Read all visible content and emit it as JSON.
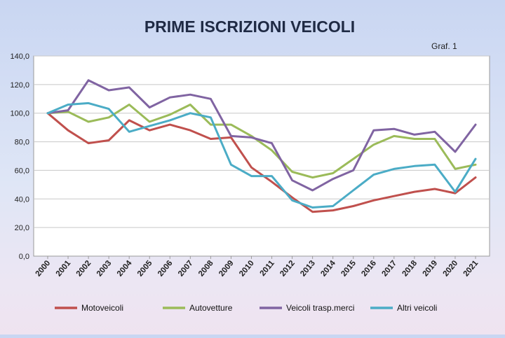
{
  "chart_data": {
    "type": "line",
    "title": "PRIME ISCRIZIONI VEICOLI",
    "annotation": "Graf. 1",
    "x": [
      "2000",
      "2001",
      "2002",
      "2003",
      "2004",
      "2005",
      "2006",
      "2007",
      "2008",
      "2009",
      "2010",
      "2011",
      "2012",
      "2013",
      "2014",
      "2015",
      "2016",
      "2017",
      "2018",
      "2019",
      "2020",
      "2021"
    ],
    "y_ticks": [
      "0,0",
      "20,0",
      "40,0",
      "60,0",
      "80,0",
      "100,0",
      "120,0",
      "140,0"
    ],
    "ylim": [
      0,
      140
    ],
    "grid": true,
    "legend_position": "bottom",
    "series": [
      {
        "name": "Motoveicoli",
        "color": "#c0504d",
        "values": [
          100,
          88,
          79,
          81,
          95,
          88,
          92,
          88,
          82,
          83,
          62,
          52,
          41,
          31,
          32,
          35,
          39,
          42,
          45,
          47,
          44,
          55
        ]
      },
      {
        "name": "Autovetture",
        "color": "#9bbb59",
        "values": [
          100,
          101,
          94,
          97,
          106,
          94,
          99,
          106,
          92,
          92,
          84,
          74,
          59,
          55,
          58,
          68,
          78,
          84,
          82,
          82,
          61,
          64
        ]
      },
      {
        "name": "Veicoli trasp.merci",
        "color": "#8064a2",
        "values": [
          100,
          102,
          123,
          116,
          118,
          104,
          111,
          113,
          110,
          84,
          83,
          79,
          53,
          46,
          54,
          60,
          88,
          89,
          85,
          87,
          73,
          92
        ]
      },
      {
        "name": "Altri veicoli",
        "color": "#4bacc6",
        "values": [
          100,
          106,
          107,
          103,
          87,
          91,
          95,
          100,
          97,
          64,
          56,
          56,
          39,
          34,
          35,
          46,
          57,
          61,
          63,
          64,
          45,
          68
        ]
      }
    ]
  }
}
